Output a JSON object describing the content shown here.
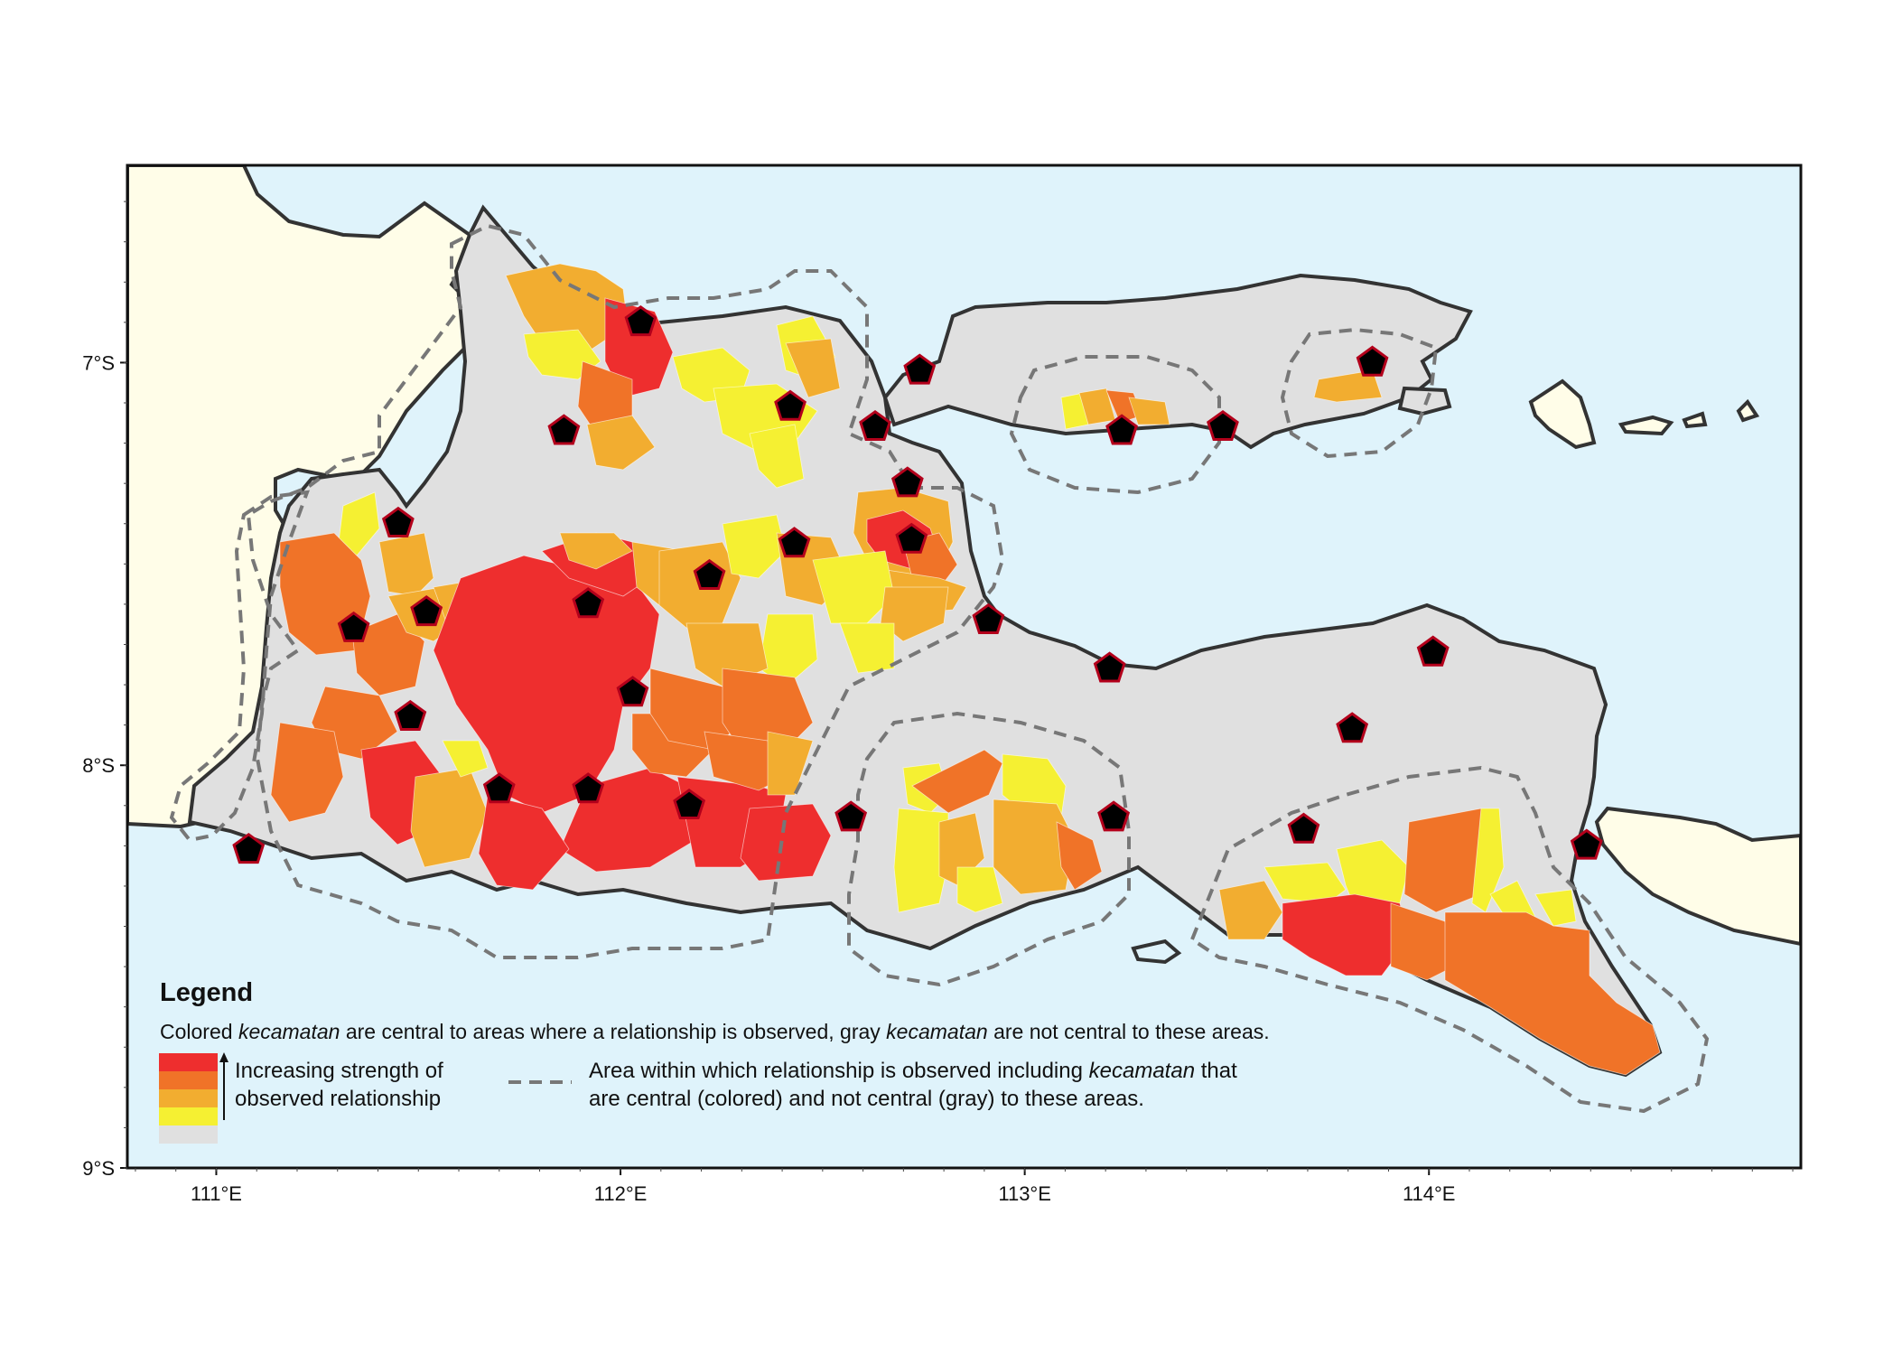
{
  "map": {
    "colors": {
      "sea": "#dff3fb",
      "land_other": "#fffde8",
      "land_gray": "#e0e0e0",
      "outline": "#333333",
      "level_1": "#ee2e2e",
      "level_2": "#f07328",
      "level_3": "#f2ad30",
      "level_4": "#f5f032",
      "marker_fill": "#000000",
      "marker_stroke": "#b3001b",
      "dashed": "#777777"
    },
    "x_axis": {
      "range": [
        110.78,
        114.92
      ],
      "ticks": [
        {
          "value": 111,
          "label": "111°E"
        },
        {
          "value": 112,
          "label": "112°E"
        },
        {
          "value": 113,
          "label": "113°E"
        },
        {
          "value": 114,
          "label": "114°E"
        }
      ]
    },
    "y_axis": {
      "range": [
        -9.0,
        -6.51
      ],
      "ticks": [
        {
          "value": -7,
          "label": "7°S"
        },
        {
          "value": -8,
          "label": "8°S"
        },
        {
          "value": -9,
          "label": "9°S"
        }
      ]
    },
    "markers": [
      {
        "lon": 111.08,
        "lat": -8.21
      },
      {
        "lon": 111.34,
        "lat": -7.66
      },
      {
        "lon": 111.45,
        "lat": -7.4
      },
      {
        "lon": 111.52,
        "lat": -7.62
      },
      {
        "lon": 111.48,
        "lat": -7.88
      },
      {
        "lon": 111.7,
        "lat": -8.06
      },
      {
        "lon": 111.86,
        "lat": -7.17
      },
      {
        "lon": 111.92,
        "lat": -7.6
      },
      {
        "lon": 111.92,
        "lat": -8.06
      },
      {
        "lon": 112.03,
        "lat": -7.82
      },
      {
        "lon": 112.05,
        "lat": -6.9
      },
      {
        "lon": 112.22,
        "lat": -7.53
      },
      {
        "lon": 112.17,
        "lat": -8.1
      },
      {
        "lon": 112.42,
        "lat": -7.11
      },
      {
        "lon": 112.43,
        "lat": -7.45
      },
      {
        "lon": 112.57,
        "lat": -8.13
      },
      {
        "lon": 112.63,
        "lat": -7.16
      },
      {
        "lon": 112.71,
        "lat": -7.3
      },
      {
        "lon": 112.72,
        "lat": -7.44
      },
      {
        "lon": 112.74,
        "lat": -7.02
      },
      {
        "lon": 112.91,
        "lat": -7.64
      },
      {
        "lon": 113.21,
        "lat": -7.76
      },
      {
        "lon": 113.22,
        "lat": -8.13
      },
      {
        "lon": 113.24,
        "lat": -7.17
      },
      {
        "lon": 113.49,
        "lat": -7.16
      },
      {
        "lon": 113.69,
        "lat": -8.16
      },
      {
        "lon": 113.81,
        "lat": -7.91
      },
      {
        "lon": 113.86,
        "lat": -7.0
      },
      {
        "lon": 114.01,
        "lat": -7.72
      },
      {
        "lon": 114.39,
        "lat": -8.2
      }
    ]
  },
  "legend": {
    "title": "Legend",
    "caption_part1": "Colored ",
    "caption_em1": "kecamatan",
    "caption_part2": " are central to areas where a relationship is observed, gray ",
    "caption_em2": "kecamatan",
    "caption_part3": " are not central to these areas.",
    "strength_line1": "Increasing strength of",
    "strength_line2": "observed relationship",
    "area_line1_part1": "Area within which relationship is observed including ",
    "area_line1_em": "kecamatan",
    "area_line1_part2": " that",
    "area_line2": "are central (colored) and not central (gray) to these areas."
  }
}
